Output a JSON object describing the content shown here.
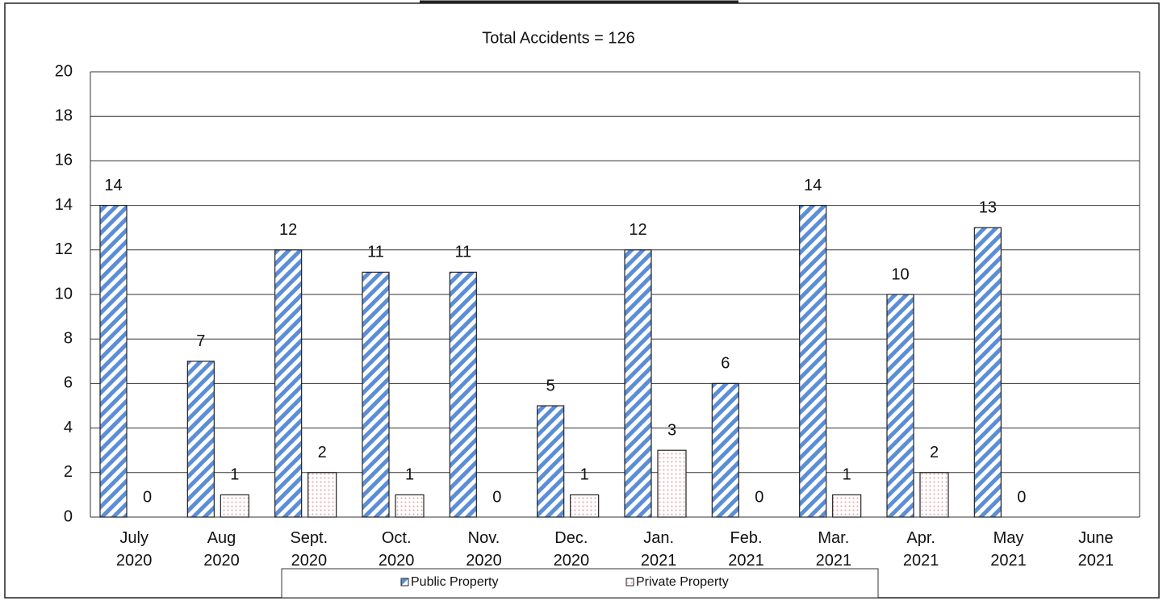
{
  "chart_data": {
    "type": "bar",
    "title": "Total Accidents = 126",
    "categories": [
      "July 2020",
      "Aug 2020",
      "Sept. 2020",
      "Oct. 2020",
      "Nov. 2020",
      "Dec. 2020",
      "Jan. 2021",
      "Feb. 2021",
      "Mar. 2021",
      "Apr. 2021",
      "May 2021",
      "June 2021"
    ],
    "series": [
      {
        "name": "Public Property",
        "color": "#5b8ed6",
        "values": [
          14,
          7,
          12,
          11,
          11,
          5,
          12,
          6,
          14,
          10,
          13,
          null
        ]
      },
      {
        "name": "Private Property",
        "color": "#e8a0a8",
        "values": [
          0,
          1,
          2,
          1,
          0,
          1,
          3,
          0,
          1,
          2,
          0,
          null
        ]
      }
    ],
    "ylim": [
      0,
      20
    ],
    "yticks": [
      0,
      2,
      4,
      6,
      8,
      10,
      12,
      14,
      16,
      18,
      20
    ],
    "grid": true,
    "legend": "bottom"
  }
}
